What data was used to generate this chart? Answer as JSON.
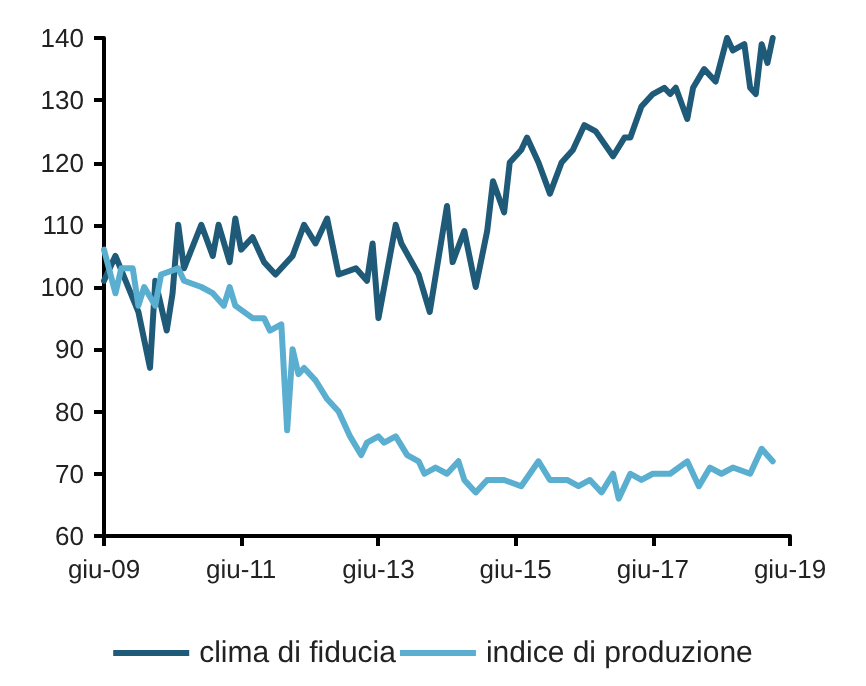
{
  "chart_data": {
    "type": "line",
    "marker": "none",
    "grid": false,
    "legend": "bottom",
    "xlim": [
      "2009-06",
      "2019-06"
    ],
    "ylim": [
      60,
      140
    ],
    "yticks": [
      60,
      70,
      80,
      90,
      100,
      110,
      120,
      130,
      140
    ],
    "xticks": [
      {
        "value": "2009-06",
        "label": "giu-09"
      },
      {
        "value": "2011-06",
        "label": "giu-11"
      },
      {
        "value": "2013-06",
        "label": "giu-13"
      },
      {
        "value": "2015-06",
        "label": "giu-15"
      },
      {
        "value": "2017-06",
        "label": "giu-17"
      },
      {
        "value": "2019-06",
        "label": "giu-19"
      }
    ],
    "series": [
      {
        "name": "clima di fiducia",
        "color": "#1f5a78",
        "x": [
          "2009-06",
          "2009-08",
          "2009-12",
          "2010-02",
          "2010-03",
          "2010-05",
          "2010-06",
          "2010-07",
          "2010-08",
          "2010-11",
          "2011-01",
          "2011-02",
          "2011-04",
          "2011-05",
          "2011-06",
          "2011-08",
          "2011-10",
          "2011-12",
          "2012-03",
          "2012-05",
          "2012-07",
          "2012-09",
          "2012-11",
          "2013-02",
          "2013-04",
          "2013-05",
          "2013-06",
          "2013-09",
          "2013-10",
          "2014-01",
          "2014-03",
          "2014-06",
          "2014-07",
          "2014-09",
          "2014-11",
          "2015-01",
          "2015-02",
          "2015-04",
          "2015-05",
          "2015-07",
          "2015-08",
          "2015-10",
          "2015-12",
          "2016-02",
          "2016-04",
          "2016-06",
          "2016-08",
          "2016-11",
          "2017-01",
          "2017-02",
          "2017-04",
          "2017-06",
          "2017-08",
          "2017-09",
          "2017-10",
          "2017-12",
          "2018-01",
          "2018-03",
          "2018-05",
          "2018-07",
          "2018-08",
          "2018-10",
          "2018-11",
          "2018-12",
          "2019-01",
          "2019-02",
          "2019-03"
        ],
        "values": [
          101,
          105,
          96,
          87,
          101,
          93,
          99,
          110,
          103,
          110,
          105,
          110,
          104,
          111,
          106,
          108,
          104,
          102,
          105,
          110,
          107,
          111,
          102,
          103,
          101,
          107,
          95,
          110,
          107,
          102,
          96,
          113,
          104,
          109,
          100,
          109,
          117,
          112,
          120,
          122,
          124,
          120,
          115,
          120,
          122,
          126,
          125,
          121,
          124,
          124,
          129,
          131,
          132,
          131,
          132,
          127,
          132,
          135,
          133,
          140,
          138,
          139,
          132,
          131,
          139,
          136,
          140
        ]
      },
      {
        "name": "indice di produzione",
        "color": "#5aaed0",
        "x": [
          "2009-06",
          "2009-08",
          "2009-09",
          "2009-11",
          "2009-12",
          "2010-01",
          "2010-03",
          "2010-04",
          "2010-07",
          "2010-08",
          "2010-11",
          "2011-01",
          "2011-03",
          "2011-04",
          "2011-05",
          "2011-08",
          "2011-10",
          "2011-11",
          "2012-01",
          "2012-02",
          "2012-03",
          "2012-04",
          "2012-05",
          "2012-07",
          "2012-09",
          "2012-11",
          "2013-01",
          "2013-03",
          "2013-04",
          "2013-06",
          "2013-07",
          "2013-09",
          "2013-11",
          "2014-01",
          "2014-02",
          "2014-04",
          "2014-06",
          "2014-08",
          "2014-09",
          "2014-11",
          "2015-01",
          "2015-04",
          "2015-07",
          "2015-10",
          "2015-12",
          "2016-03",
          "2016-05",
          "2016-07",
          "2016-09",
          "2016-11",
          "2016-12",
          "2017-02",
          "2017-04",
          "2017-06",
          "2017-09",
          "2017-12",
          "2018-02",
          "2018-04",
          "2018-06",
          "2018-08",
          "2018-11",
          "2019-01",
          "2019-03"
        ],
        "values": [
          106,
          99,
          103,
          103,
          97,
          100,
          97,
          102,
          103,
          101,
          100,
          99,
          97,
          100,
          97,
          95,
          95,
          93,
          94,
          77,
          90,
          86,
          87,
          85,
          82,
          80,
          76,
          73,
          75,
          76,
          75,
          76,
          73,
          72,
          70,
          71,
          70,
          72,
          69,
          67,
          69,
          69,
          68,
          72,
          69,
          69,
          68,
          69,
          67,
          70,
          66,
          70,
          69,
          70,
          70,
          72,
          68,
          71,
          70,
          71,
          70,
          74,
          72
        ]
      }
    ]
  }
}
